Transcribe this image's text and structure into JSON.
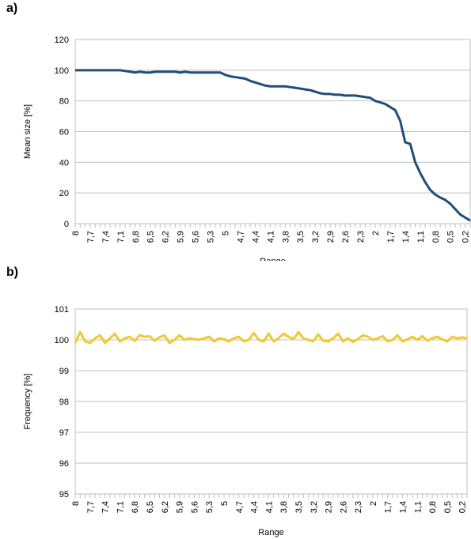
{
  "panels": {
    "a_label": "a)",
    "b_label": "b)"
  },
  "chart_data": [
    {
      "type": "line",
      "ylabel": "Mean size [%]",
      "xlabel": "Range",
      "ylim": [
        0,
        120
      ],
      "yticks": [
        0,
        20,
        40,
        60,
        80,
        100,
        120
      ],
      "grid": "horizontal",
      "x": [
        8.0,
        7.9,
        7.8,
        7.7,
        7.6,
        7.5,
        7.4,
        7.3,
        7.2,
        7.1,
        7.0,
        6.9,
        6.8,
        6.7,
        6.6,
        6.5,
        6.4,
        6.3,
        6.2,
        6.1,
        6.0,
        5.9,
        5.8,
        5.7,
        5.6,
        5.5,
        5.4,
        5.3,
        5.2,
        5.1,
        5.0,
        4.9,
        4.8,
        4.7,
        4.6,
        4.5,
        4.4,
        4.3,
        4.2,
        4.1,
        4.0,
        3.9,
        3.8,
        3.7,
        3.6,
        3.5,
        3.4,
        3.3,
        3.2,
        3.1,
        3.0,
        2.9,
        2.8,
        2.7,
        2.6,
        2.5,
        2.4,
        2.3,
        2.2,
        2.1,
        2.0,
        1.9,
        1.8,
        1.7,
        1.6,
        1.5,
        1.4,
        1.3,
        1.2,
        1.1,
        1.0,
        0.9,
        0.8,
        0.7,
        0.6,
        0.5,
        0.4,
        0.3,
        0.2,
        0.1
      ],
      "xticklabels": [
        "8",
        "7,7",
        "7,4",
        "7,1",
        "6,8",
        "6,5",
        "6,2",
        "5,9",
        "5,6",
        "5,3",
        "5",
        "4,7",
        "4,4",
        "4,1",
        "3,8",
        "3,5",
        "3,2",
        "2,9",
        "2,6",
        "2,3",
        "2",
        "1,7",
        "1,4",
        "1,1",
        "0,8",
        "0,5",
        "0,2"
      ],
      "series": [
        {
          "color": "#1f4e79",
          "values": [
            100,
            100,
            100,
            100,
            100,
            100,
            100,
            100,
            100,
            100,
            99.5,
            99,
            98.5,
            99,
            98.5,
            98.5,
            99,
            99,
            99,
            99,
            99,
            98.5,
            99,
            98.5,
            98.5,
            98.5,
            98.5,
            98.5,
            98.5,
            98.5,
            97,
            96,
            95.5,
            95,
            94.5,
            93,
            92,
            91,
            90,
            89.5,
            89.5,
            89.5,
            89.5,
            89,
            88.5,
            88,
            87.5,
            87,
            86,
            85,
            84.5,
            84.5,
            84,
            84,
            83.5,
            83.5,
            83.5,
            83,
            82.5,
            82,
            80,
            79,
            78,
            76,
            74,
            67,
            53,
            52,
            40,
            33,
            27,
            22,
            19,
            17,
            15.5,
            13,
            9.5,
            6,
            4,
            2
          ]
        }
      ]
    },
    {
      "type": "line",
      "ylabel": "Frequency [%]",
      "xlabel": "Range",
      "ylim": [
        95,
        101
      ],
      "yticks": [
        95,
        96,
        97,
        98,
        99,
        100,
        101
      ],
      "grid": "horizontal",
      "x": [
        8.0,
        7.9,
        7.8,
        7.7,
        7.6,
        7.5,
        7.4,
        7.3,
        7.2,
        7.1,
        7.0,
        6.9,
        6.8,
        6.7,
        6.6,
        6.5,
        6.4,
        6.3,
        6.2,
        6.1,
        6.0,
        5.9,
        5.8,
        5.7,
        5.6,
        5.5,
        5.4,
        5.3,
        5.2,
        5.1,
        5.0,
        4.9,
        4.8,
        4.7,
        4.6,
        4.5,
        4.4,
        4.3,
        4.2,
        4.1,
        4.0,
        3.9,
        3.8,
        3.7,
        3.6,
        3.5,
        3.4,
        3.3,
        3.2,
        3.1,
        3.0,
        2.9,
        2.8,
        2.7,
        2.6,
        2.5,
        2.4,
        2.3,
        2.2,
        2.1,
        2.0,
        1.9,
        1.8,
        1.7,
        1.6,
        1.5,
        1.4,
        1.3,
        1.2,
        1.1,
        1.0,
        0.9,
        0.8,
        0.7,
        0.6,
        0.5,
        0.4,
        0.3,
        0.2,
        0.1
      ],
      "xticklabels": [
        "8",
        "7,7",
        "7,4",
        "7,1",
        "6,8",
        "6,5",
        "6,2",
        "5,9",
        "5,6",
        "5,3",
        "5",
        "4,7",
        "4,4",
        "4,1",
        "3,8",
        "3,5",
        "3,2",
        "2,9",
        "2,6",
        "2,3",
        "2",
        "1,7",
        "1,4",
        "1,1",
        "0,8",
        "0,5",
        "0,2"
      ],
      "series": [
        {
          "color": "#f2c82f",
          "values": [
            99.9,
            100.25,
            99.95,
            99.9,
            100.05,
            100.15,
            99.9,
            100.05,
            100.2,
            99.95,
            100.05,
            100.1,
            99.97,
            100.15,
            100.1,
            100.12,
            99.97,
            100.08,
            100.15,
            99.9,
            100.0,
            100.15,
            100.0,
            100.05,
            100.03,
            100.0,
            100.05,
            100.1,
            99.95,
            100.05,
            100.02,
            99.95,
            100.05,
            100.1,
            99.95,
            100.0,
            100.22,
            100.0,
            99.95,
            100.2,
            99.95,
            100.05,
            100.2,
            100.1,
            100.02,
            100.25,
            100.05,
            100.0,
            99.95,
            100.18,
            99.97,
            99.95,
            100.05,
            100.2,
            99.95,
            100.05,
            99.93,
            100.02,
            100.15,
            100.1,
            100.0,
            100.05,
            100.12,
            99.95,
            100.0,
            100.15,
            99.95,
            100.02,
            100.1,
            100.0,
            100.12,
            99.97,
            100.05,
            100.1,
            100.02,
            99.95,
            100.1,
            100.05,
            100.08,
            100.05
          ]
        }
      ]
    }
  ]
}
